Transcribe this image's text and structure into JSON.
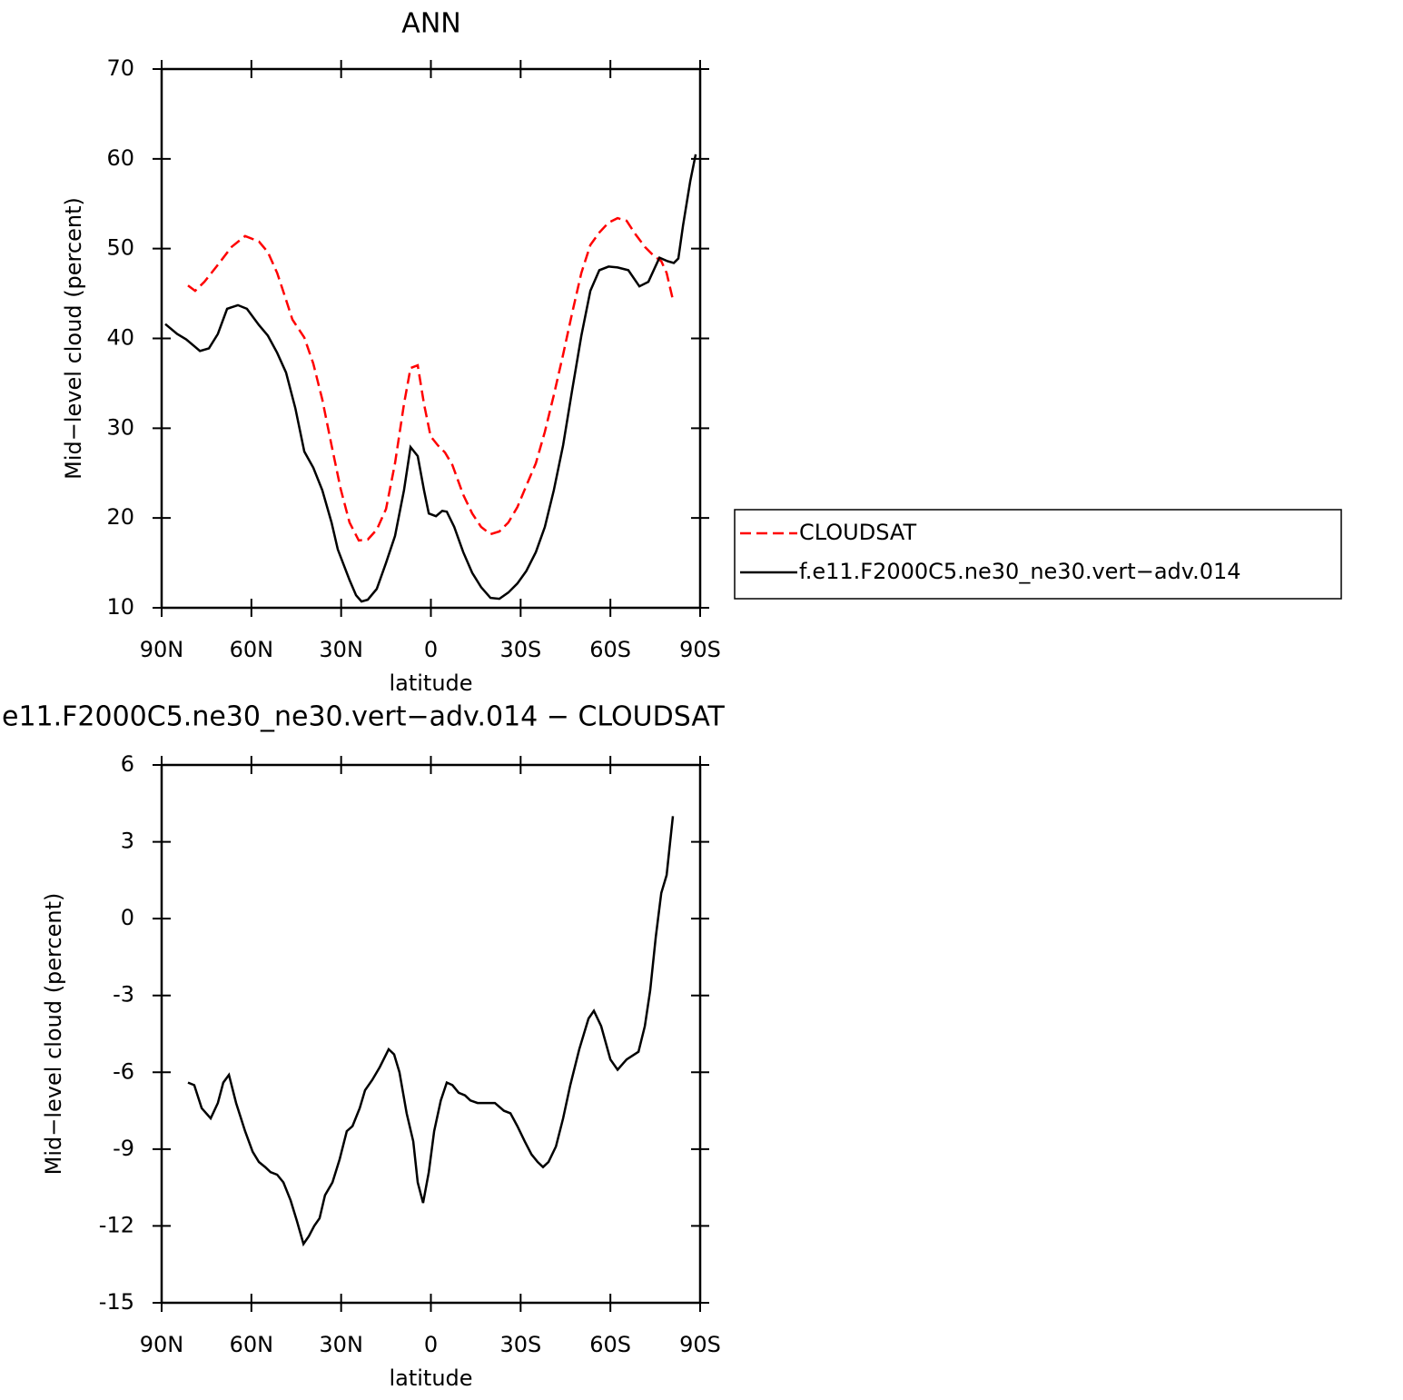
{
  "chart_data": [
    {
      "type": "line",
      "title": "ANN",
      "xlabel": "latitude",
      "ylabel": "Mid−level cloud (percent)",
      "xlim": [
        90,
        -90
      ],
      "xticks": [
        {
          "value": 90,
          "label": "90N"
        },
        {
          "value": 60,
          "label": "60N"
        },
        {
          "value": 30,
          "label": "30N"
        },
        0,
        {
          "value": -30,
          "label": "30S"
        },
        {
          "value": -60,
          "label": "60S"
        },
        {
          "value": -90,
          "label": "90S"
        }
      ],
      "ylim": [
        10,
        70
      ],
      "yticks": [
        10,
        20,
        30,
        40,
        50,
        60,
        70
      ],
      "series": [
        {
          "name": "CLOUDSAT",
          "color": "#ff0000",
          "dash": true,
          "x": [
            81.2,
            78.8,
            75.7,
            71.2,
            66.6,
            62.1,
            57.5,
            54.5,
            51.4,
            48.4,
            46.3,
            42.3,
            39.3,
            36.3,
            33.2,
            30.2,
            27.2,
            24.1,
            21.1,
            18.1,
            15.0,
            12.0,
            9.0,
            6.8,
            4.4,
            2.3,
            0.1,
            -2.3,
            -4.7,
            -7.2,
            -10.8,
            -13.8,
            -16.8,
            -19.9,
            -22.9,
            -25.9,
            -28.9,
            -31.9,
            -35.1,
            -38.1,
            -41.1,
            -44.2,
            -47.2,
            -50.3,
            -53.3,
            -56.3,
            -59.4,
            -62.4,
            -65.4,
            -68.4,
            -71.5,
            -74.5,
            -77.0,
            -78.8,
            -80.9
          ],
          "values": [
            45.9,
            45.3,
            46.3,
            48.2,
            50.2,
            51.4,
            50.8,
            49.6,
            47.3,
            44.3,
            42.1,
            40.1,
            37.2,
            33.2,
            28.1,
            23.3,
            19.5,
            17.5,
            17.6,
            18.7,
            21.0,
            26.1,
            32.7,
            36.7,
            37.0,
            32.7,
            29.1,
            28.1,
            27.3,
            25.9,
            22.6,
            20.5,
            19.0,
            18.2,
            18.5,
            19.5,
            21.2,
            23.6,
            26.1,
            29.6,
            33.7,
            38.2,
            42.8,
            47.3,
            50.4,
            51.8,
            52.9,
            53.4,
            53.1,
            51.6,
            50.2,
            49.2,
            48.6,
            47.3,
            44.3
          ]
        },
        {
          "name": "f.e11.F2000C5.ne30_ne30.vert−adv.014",
          "color": "#000000",
          "dash": false,
          "x": [
            88.8,
            84.8,
            81.8,
            77.2,
            74.2,
            71.2,
            68.1,
            64.5,
            61.5,
            57.5,
            54.5,
            51.4,
            48.4,
            45.3,
            42.3,
            39.3,
            36.3,
            33.2,
            31.1,
            27.2,
            25.0,
            23.2,
            21.1,
            18.1,
            15.0,
            12.0,
            9.0,
            6.8,
            4.4,
            2.3,
            0.7,
            -1.7,
            -3.8,
            -5.3,
            -7.8,
            -10.8,
            -13.8,
            -16.8,
            -19.9,
            -22.9,
            -25.9,
            -28.9,
            -31.9,
            -35.1,
            -38.1,
            -41.1,
            -44.2,
            -47.2,
            -50.3,
            -53.3,
            -56.3,
            -59.4,
            -62.4,
            -66.0,
            -69.7,
            -72.7,
            -76.4,
            -79.1,
            -81.2,
            -82.7,
            -84.3,
            -86.7,
            -88.5
          ],
          "values": [
            41.6,
            40.5,
            39.9,
            38.6,
            38.9,
            40.5,
            43.3,
            43.7,
            43.3,
            41.5,
            40.3,
            38.4,
            36.2,
            32.2,
            27.4,
            25.6,
            23.1,
            19.5,
            16.5,
            13.1,
            11.4,
            10.7,
            10.9,
            12.1,
            15.0,
            18.0,
            23.1,
            27.9,
            26.9,
            23.1,
            20.5,
            20.2,
            20.8,
            20.7,
            19.0,
            16.2,
            13.9,
            12.3,
            11.1,
            11.0,
            11.7,
            12.7,
            14.1,
            16.2,
            19.0,
            23.1,
            28.1,
            34.2,
            40.3,
            45.3,
            47.6,
            48.0,
            47.9,
            47.6,
            45.8,
            46.3,
            49.0,
            48.6,
            48.4,
            48.9,
            52.6,
            57.5,
            60.5
          ]
        }
      ]
    },
    {
      "type": "line",
      "title": "e11.F2000C5.ne30_ne30.vert−adv.014 − CLOUDSAT",
      "xlabel": "latitude",
      "ylabel": "Mid−level cloud (percent)",
      "xlim": [
        90,
        -90
      ],
      "xticks": [
        {
          "value": 90,
          "label": "90N"
        },
        {
          "value": 60,
          "label": "60N"
        },
        {
          "value": 30,
          "label": "30N"
        },
        0,
        {
          "value": -30,
          "label": "30S"
        },
        {
          "value": -60,
          "label": "60S"
        },
        {
          "value": -90,
          "label": "90S"
        }
      ],
      "ylim": [
        -15,
        6
      ],
      "yticks": [
        -15,
        -12,
        -9,
        -6,
        -3,
        0,
        3,
        6
      ],
      "series": [
        {
          "color": "#000000",
          "dash": false,
          "x": [
            81.2,
            79.1,
            76.6,
            73.6,
            71.2,
            69.4,
            67.5,
            65.1,
            62.1,
            59.6,
            57.5,
            55.4,
            53.6,
            51.4,
            49.3,
            46.9,
            44.8,
            42.6,
            40.8,
            39.0,
            37.2,
            35.4,
            32.9,
            30.5,
            28.1,
            26.2,
            23.8,
            22.0,
            19.6,
            17.1,
            14.1,
            12.3,
            10.5,
            8.1,
            5.9,
            4.4,
            2.6,
            0.7,
            -1.1,
            -3.3,
            -5.3,
            -7.2,
            -9.3,
            -11.4,
            -13.2,
            -15.6,
            -18.4,
            -21.4,
            -24.4,
            -26.6,
            -28.9,
            -31.4,
            -33.6,
            -35.7,
            -37.5,
            -39.3,
            -41.8,
            -44.2,
            -46.6,
            -49.6,
            -52.7,
            -54.5,
            -56.9,
            -60.0,
            -62.4,
            -65.4,
            -69.4,
            -71.5,
            -73.3,
            -75.2,
            -77.0,
            -78.8,
            -80.9
          ],
          "values": [
            -6.4,
            -6.5,
            -7.4,
            -7.8,
            -7.2,
            -6.4,
            -6.1,
            -7.2,
            -8.3,
            -9.1,
            -9.5,
            -9.7,
            -9.9,
            -10.0,
            -10.3,
            -11.0,
            -11.8,
            -12.7,
            -12.4,
            -12.0,
            -11.7,
            -10.8,
            -10.3,
            -9.4,
            -8.3,
            -8.1,
            -7.4,
            -6.7,
            -6.3,
            -5.8,
            -5.1,
            -5.3,
            -6.0,
            -7.6,
            -8.7,
            -10.3,
            -11.1,
            -9.9,
            -8.3,
            -7.1,
            -6.4,
            -6.5,
            -6.8,
            -6.9,
            -7.1,
            -7.2,
            -7.2,
            -7.2,
            -7.5,
            -7.6,
            -8.1,
            -8.7,
            -9.2,
            -9.5,
            -9.7,
            -9.5,
            -8.9,
            -7.8,
            -6.5,
            -5.1,
            -3.9,
            -3.6,
            -4.2,
            -5.5,
            -5.9,
            -5.5,
            -5.2,
            -4.2,
            -2.8,
            -0.7,
            1.0,
            1.7,
            4.0
          ]
        }
      ]
    }
  ]
}
